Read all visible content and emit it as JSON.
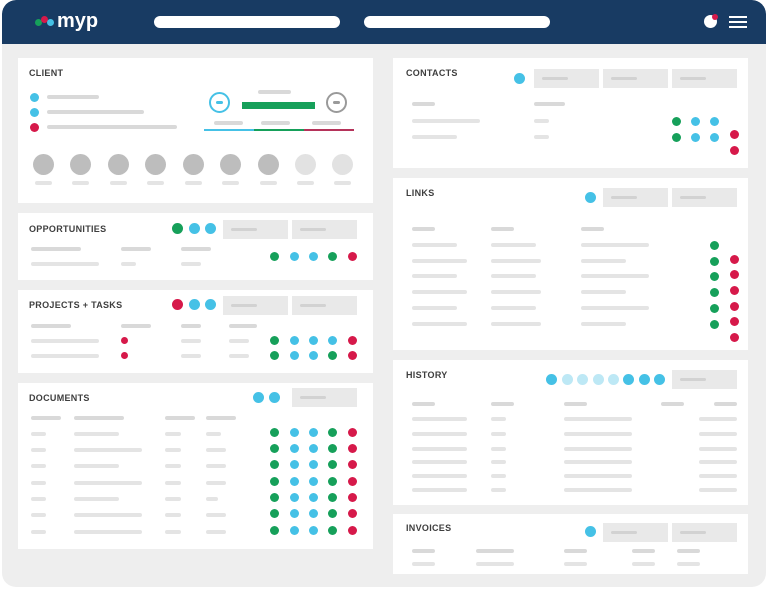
{
  "app": {
    "logo_text": "myp",
    "colors": {
      "navy": "#183b63",
      "green": "#16a05a",
      "blue": "#45c1e6",
      "light_blue": "#bde8f5",
      "red": "#d6194a",
      "gray_avatar": "#bdbdbd",
      "light_gray_avatar": "#e2e2e2"
    }
  },
  "topbar": {
    "search_icon": "search-bar",
    "notification_icon": "notification-avatar-icon",
    "menu_icon": "hamburger-icon"
  },
  "client": {
    "title": "CLIENT"
  },
  "opportunities": {
    "title": "OPPORTUNITIES"
  },
  "projects": {
    "title": "PROJECTS + TASKS"
  },
  "documents": {
    "title": "DOCUMENTS"
  },
  "contacts": {
    "title": "CONTACTS"
  },
  "links": {
    "title": "LINKS"
  },
  "history": {
    "title": "HISTORY"
  },
  "invoices": {
    "title": "INVOICES"
  }
}
